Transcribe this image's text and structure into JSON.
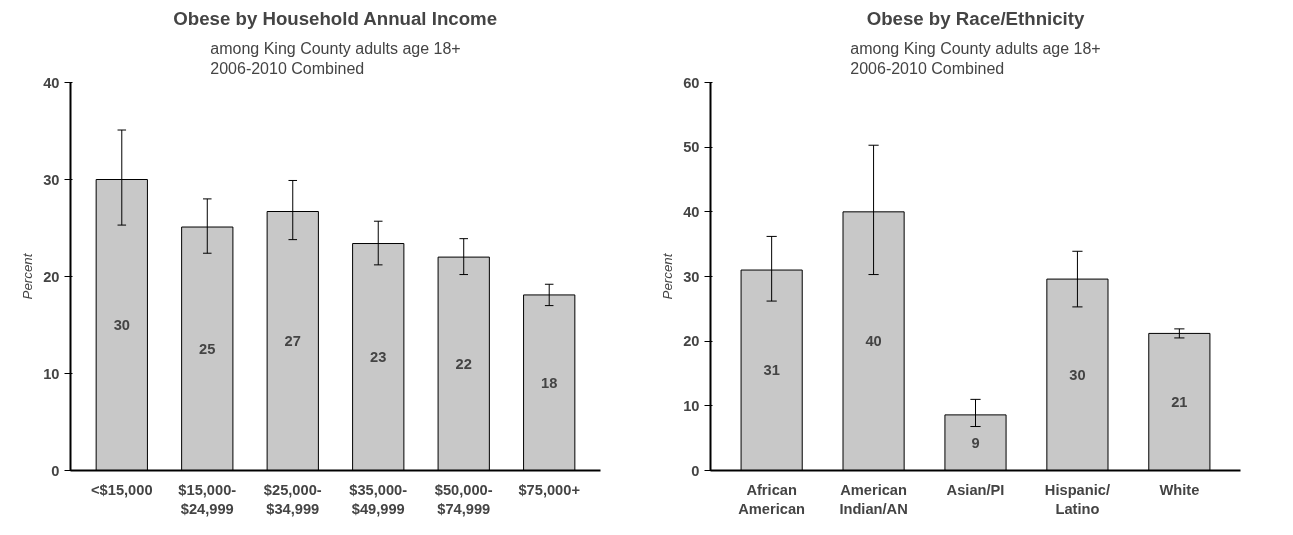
{
  "chart_data": [
    {
      "type": "bar",
      "title": "Obese by Household Annual Income",
      "subtitle": "among King County adults age 18+\n2006-2010 Combined",
      "ylabel": "Percent",
      "categories": [
        "<$15,000",
        "$15,000-\n$24,999",
        "$25,000-\n$34,999",
        "$35,000-\n$49,999",
        "$50,000-\n$74,999",
        "$75,000+"
      ],
      "series": [
        {
          "color": "#c8c8c8",
          "values": [
            30.0,
            25.1,
            26.7,
            23.4,
            22.0,
            18.1
          ],
          "errors": [
            [
              25.3,
              35.1
            ],
            [
              22.4,
              28.0
            ],
            [
              23.8,
              29.9
            ],
            [
              21.2,
              25.7
            ],
            [
              20.2,
              23.9
            ],
            [
              17.0,
              19.2
            ]
          ],
          "value_labels": [
            "30",
            "25",
            "27",
            "23",
            "22",
            "18"
          ]
        }
      ],
      "ylim": [
        0,
        40
      ],
      "yticks": [
        0,
        10,
        20,
        30,
        40
      ],
      "grid": false
    },
    {
      "type": "bar",
      "title": "Obese by Race/Ethnicity",
      "subtitle": "among King County adults age 18+\n2006-2010 Combined",
      "ylabel": "Percent",
      "categories": [
        "African\nAmerican",
        "American\nIndian/AN",
        "Asian/PI",
        "Hispanic/\nLatino",
        "White"
      ],
      "series": [
        {
          "color": "#c8c8c8",
          "values": [
            31.0,
            40.0,
            8.6,
            29.6,
            21.2
          ],
          "errors": [
            [
              26.2,
              36.2
            ],
            [
              30.3,
              50.3
            ],
            [
              6.8,
              11.0
            ],
            [
              25.3,
              33.9
            ],
            [
              20.5,
              21.9
            ]
          ],
          "value_labels": [
            "31",
            "40",
            "9",
            "30",
            "21"
          ]
        }
      ],
      "ylim": [
        0,
        60
      ],
      "yticks": [
        0,
        10,
        20,
        30,
        40,
        50,
        60
      ],
      "grid": false
    }
  ]
}
